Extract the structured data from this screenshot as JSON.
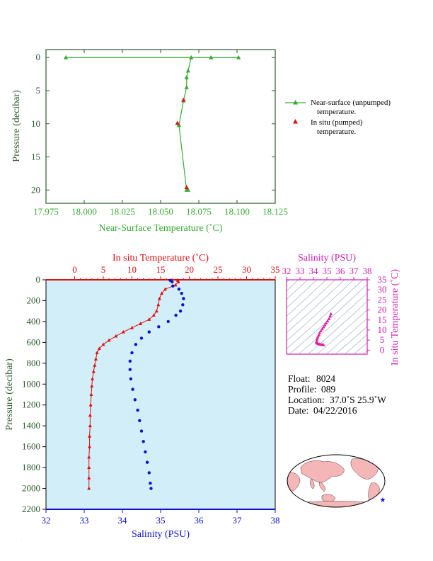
{
  "colors": {
    "green": "#3aaa35",
    "red": "#e01010",
    "blue": "#1010d0",
    "magenta": "#d020b0",
    "axisGreen": "#2d5a2d",
    "panelBg": "#d2eef8",
    "land": "#f4b6b6",
    "ocean": "#ffffff"
  },
  "chart_data": [
    {
      "type": "line",
      "xlabel": "Near-Surface Temperature (˚C)",
      "ylabel": "Pressure (decibar)",
      "xlim": [
        17.975,
        18.125
      ],
      "ylim": [
        22,
        -1.2
      ],
      "x_ticks": [
        "17.975",
        "18.000",
        "18.025",
        "18.050",
        "18.075",
        "18.100",
        "18.125"
      ],
      "y_ticks": [
        "0",
        "5",
        "10",
        "15",
        "20"
      ],
      "legend_position": "right",
      "series": [
        {
          "name": "Near-surface (unpumped) temperature.",
          "name_line1": "Near-surface (unpumped)",
          "name_line2": "temperature.",
          "color": "#3aaa35",
          "marker": "triangle",
          "points": [
            [
              17.988,
              0
            ],
            [
              18.101,
              0
            ],
            [
              18.083,
              0
            ],
            [
              18.07,
              0
            ],
            [
              18.068,
              2
            ],
            [
              18.067,
              3
            ],
            [
              18.067,
              4.5
            ],
            [
              18.065,
              6.5
            ],
            [
              18.062,
              10.2
            ],
            [
              18.067,
              20
            ],
            [
              18.068,
              20
            ]
          ]
        },
        {
          "name": "In situ (pumped) temperature.",
          "name_line1": "In situ (pumped)",
          "name_line2": "temperature.",
          "color": "#e01010",
          "marker": "triangle",
          "points": [
            [
              18.065,
              6.4
            ],
            [
              18.061,
              9.9
            ],
            [
              18.067,
              19.6
            ]
          ]
        }
      ]
    },
    {
      "type": "scatter",
      "top_xlabel": "In situ Temperature (˚C)",
      "bottom_xlabel": "Salinity (PSU)",
      "ylabel": "Pressure (decibar)",
      "temp_lim": [
        -5,
        35
      ],
      "sal_lim": [
        32,
        38
      ],
      "ylim": [
        2200,
        0
      ],
      "temp_ticks": [
        "0",
        "5",
        "10",
        "15",
        "20",
        "25",
        "30",
        "35"
      ],
      "sal_ticks": [
        "32",
        "33",
        "34",
        "35",
        "36",
        "37",
        "38"
      ],
      "y_ticks": [
        "0",
        "200",
        "400",
        "600",
        "800",
        "1000",
        "1200",
        "1400",
        "1600",
        "1800",
        "2000",
        "2200"
      ],
      "temperature": {
        "color": "#e01010",
        "points": [
          [
            18.0,
            5
          ],
          [
            18.1,
            20
          ],
          [
            17.6,
            50
          ],
          [
            15.8,
            90
          ],
          [
            15.2,
            130
          ],
          [
            14.8,
            180
          ],
          [
            14.6,
            240
          ],
          [
            14.3,
            300
          ],
          [
            13.8,
            340
          ],
          [
            13.0,
            380
          ],
          [
            11.5,
            420
          ],
          [
            10.0,
            460
          ],
          [
            8.5,
            500
          ],
          [
            7.2,
            540
          ],
          [
            6.0,
            580
          ],
          [
            5.0,
            620
          ],
          [
            4.3,
            660
          ],
          [
            3.9,
            700
          ],
          [
            3.7,
            760
          ],
          [
            3.5,
            820
          ],
          [
            3.3,
            880
          ],
          [
            3.1,
            950
          ],
          [
            3.0,
            1020
          ],
          [
            2.9,
            1100
          ],
          [
            2.8,
            1200
          ],
          [
            2.7,
            1300
          ],
          [
            2.7,
            1400
          ],
          [
            2.6,
            1500
          ],
          [
            2.6,
            1600
          ],
          [
            2.5,
            1700
          ],
          [
            2.5,
            1800
          ],
          [
            2.5,
            1900
          ],
          [
            2.5,
            2000
          ]
        ]
      },
      "salinity": {
        "color": "#1010d0",
        "points": [
          [
            35.25,
            5
          ],
          [
            35.3,
            20
          ],
          [
            35.32,
            60
          ],
          [
            35.48,
            90
          ],
          [
            35.55,
            130
          ],
          [
            35.6,
            180
          ],
          [
            35.58,
            240
          ],
          [
            35.52,
            300
          ],
          [
            35.4,
            340
          ],
          [
            35.2,
            400
          ],
          [
            34.95,
            450
          ],
          [
            34.7,
            500
          ],
          [
            34.5,
            560
          ],
          [
            34.35,
            620
          ],
          [
            34.25,
            700
          ],
          [
            34.2,
            780
          ],
          [
            34.2,
            860
          ],
          [
            34.22,
            950
          ],
          [
            34.27,
            1050
          ],
          [
            34.33,
            1150
          ],
          [
            34.4,
            1250
          ],
          [
            34.45,
            1350
          ],
          [
            34.5,
            1450
          ],
          [
            34.55,
            1550
          ],
          [
            34.6,
            1650
          ],
          [
            34.65,
            1750
          ],
          [
            34.7,
            1850
          ],
          [
            34.73,
            1950
          ],
          [
            34.75,
            2000
          ]
        ]
      }
    },
    {
      "type": "scatter",
      "xlabel": "Salinity (PSU)",
      "ylabel": "In situ Temperature (˚C)",
      "xlim": [
        32,
        38
      ],
      "ylim": [
        -2,
        35
      ],
      "x_ticks": [
        "32",
        "33",
        "34",
        "35",
        "36",
        "37",
        "38"
      ],
      "y_ticks": [
        "0",
        "5",
        "10",
        "15",
        "20",
        "25",
        "30",
        "35"
      ],
      "color": "#e020a0",
      "points": [
        [
          35.3,
          18
        ],
        [
          35.25,
          17
        ],
        [
          35.15,
          15.5
        ],
        [
          35.05,
          14.5
        ],
        [
          34.95,
          13.5
        ],
        [
          34.85,
          12.5
        ],
        [
          34.75,
          11.5
        ],
        [
          34.65,
          10.5
        ],
        [
          34.55,
          9.5
        ],
        [
          34.45,
          8.5
        ],
        [
          34.4,
          7.5
        ],
        [
          34.32,
          6.5
        ],
        [
          34.28,
          5.5
        ],
        [
          34.25,
          4.5
        ],
        [
          34.22,
          4
        ],
        [
          34.25,
          3.5
        ],
        [
          34.35,
          3.2
        ],
        [
          34.45,
          3
        ],
        [
          34.55,
          2.8
        ],
        [
          34.65,
          2.7
        ],
        [
          34.75,
          2.6
        ]
      ]
    }
  ],
  "float_info": {
    "float_label": "Float:",
    "float_value": "8024",
    "profile_label": "Profile:",
    "profile_value": "089",
    "location_label": "Location:",
    "location_value": "37.0˚S  25.9˚W",
    "date_label": "Date:",
    "date_value": "04/22/2016"
  },
  "map": {
    "marker": "star"
  }
}
